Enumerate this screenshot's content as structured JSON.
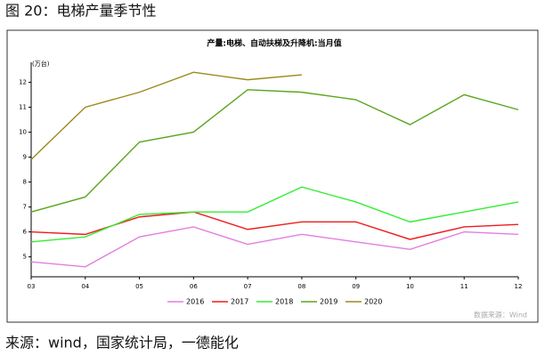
{
  "header": {
    "title": "图 20：电梯产量季节性"
  },
  "chart_data": {
    "type": "line",
    "title": "产量:电梯、自动扶梯及升降机:当月值",
    "y_unit": "(万台)",
    "watermark": "数据来源：Wind",
    "categories": [
      "03",
      "04",
      "05",
      "06",
      "07",
      "08",
      "09",
      "10",
      "11",
      "12"
    ],
    "series": [
      {
        "name": "2016",
        "color": "#e27ee0",
        "values": [
          4.8,
          4.6,
          5.8,
          6.2,
          5.5,
          5.9,
          5.6,
          5.3,
          6.0,
          5.9
        ]
      },
      {
        "name": "2017",
        "color": "#ee1c1c",
        "values": [
          6.0,
          5.9,
          6.6,
          6.8,
          6.1,
          6.4,
          6.4,
          5.7,
          6.2,
          6.3
        ]
      },
      {
        "name": "2018",
        "color": "#33ee33",
        "values": [
          5.6,
          5.8,
          6.7,
          6.8,
          6.8,
          7.8,
          7.2,
          6.4,
          6.8,
          7.2
        ]
      },
      {
        "name": "2019",
        "color": "#5aa51e",
        "values": [
          6.8,
          7.4,
          9.6,
          10.0,
          11.7,
          11.6,
          11.3,
          10.3,
          11.5,
          10.9
        ]
      },
      {
        "name": "2020",
        "color": "#9a8a1c",
        "values": [
          8.9,
          11.0,
          11.6,
          12.4,
          12.1,
          12.3,
          null,
          null,
          null,
          null
        ]
      }
    ],
    "ylim": [
      4.2,
      12.8
    ],
    "yticks": [
      5,
      6,
      7,
      8,
      9,
      10,
      11,
      12
    ],
    "grid": false
  },
  "source": "来源：wind，国家统计局，一德能化"
}
